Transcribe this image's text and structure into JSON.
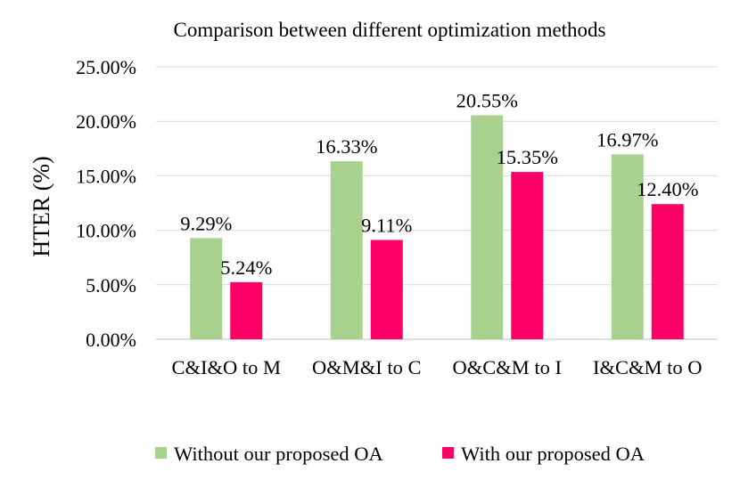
{
  "chart_data": {
    "type": "bar",
    "title": "Comparison between different optimization methods",
    "xlabel": "",
    "ylabel": "HTER (%)",
    "ylim": [
      0,
      25
    ],
    "ytick_values": [
      0,
      5,
      10,
      15,
      20,
      25
    ],
    "ytick_labels": [
      "0.00%",
      "5.00%",
      "10.00%",
      "15.00%",
      "20.00%",
      "25.00%"
    ],
    "categories": [
      "C&I&O to M",
      "O&M&I to C",
      "O&C&M to I",
      "I&C&M to O"
    ],
    "series": [
      {
        "name": "Without our proposed OA",
        "color": "#a9d18e",
        "values": [
          9.29,
          16.33,
          20.55,
          16.97
        ],
        "labels": [
          "9.29%",
          "16.33%",
          "20.55%",
          "16.97%"
        ]
      },
      {
        "name": "With our proposed OA",
        "color": "#ff0066",
        "values": [
          5.24,
          9.11,
          15.35,
          12.4
        ],
        "labels": [
          "5.24%",
          "9.11%",
          "15.35%",
          "12.40%"
        ]
      }
    ],
    "grid": true,
    "legend_position": "bottom"
  }
}
